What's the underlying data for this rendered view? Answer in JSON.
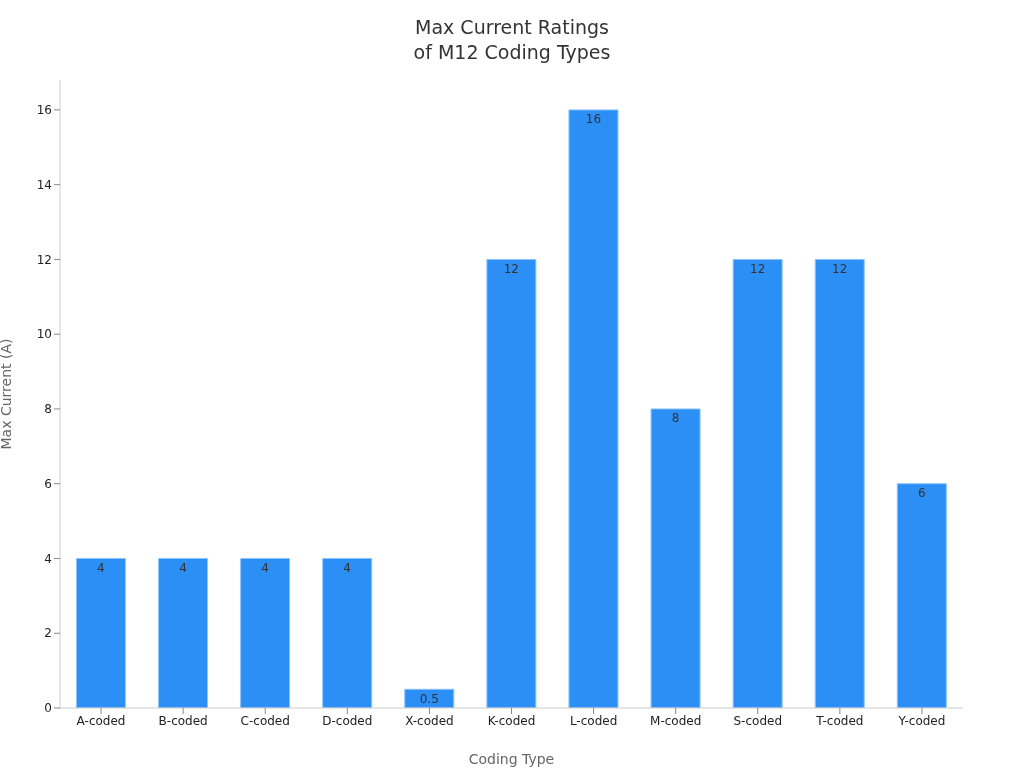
{
  "chart_data": {
    "type": "bar",
    "title": "Max Current Ratings\nof M12 Coding Types",
    "xlabel": "Coding Type",
    "ylabel": "Max Current (A)",
    "categories": [
      "A-coded",
      "B-coded",
      "C-coded",
      "D-coded",
      "X-coded",
      "K-coded",
      "L-coded",
      "M-coded",
      "S-coded",
      "T-coded",
      "Y-coded"
    ],
    "values": [
      4,
      4,
      4,
      4,
      0.5,
      12,
      16,
      8,
      12,
      12,
      6
    ],
    "color": "#2b8ff6",
    "ylim": [
      0,
      16.8
    ],
    "yticks": [
      0,
      2,
      4,
      6,
      8,
      10,
      12,
      14,
      16
    ],
    "grid": false,
    "data_labels": true
  }
}
